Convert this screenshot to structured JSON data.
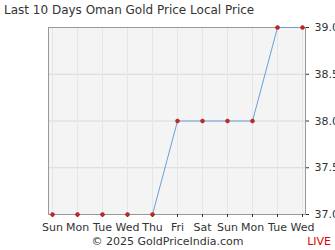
{
  "chart_data": {
    "type": "line",
    "title": "Last 10 Days Oman Gold Price Local Price",
    "caption": "© 2025 GoldPriceIndia.com",
    "annotation": "LIVE",
    "categories": [
      "Sun",
      "Mon",
      "Tue",
      "Wed",
      "Thu",
      "Fri",
      "Sat",
      "Sun",
      "Mon",
      "Tue",
      "Wed"
    ],
    "values": [
      37,
      37,
      37,
      37,
      37,
      38,
      38,
      38,
      38,
      39,
      39
    ],
    "color": "#6a9fd8",
    "marker": "circle",
    "ylim": [
      37,
      39
    ],
    "yticks": [
      {
        "value": 37,
        "label": "37.0"
      },
      37.5,
      {
        "value": 38,
        "label": "38.0"
      },
      38.5,
      {
        "value": 39,
        "label": "39.0"
      }
    ],
    "grid": true
  }
}
